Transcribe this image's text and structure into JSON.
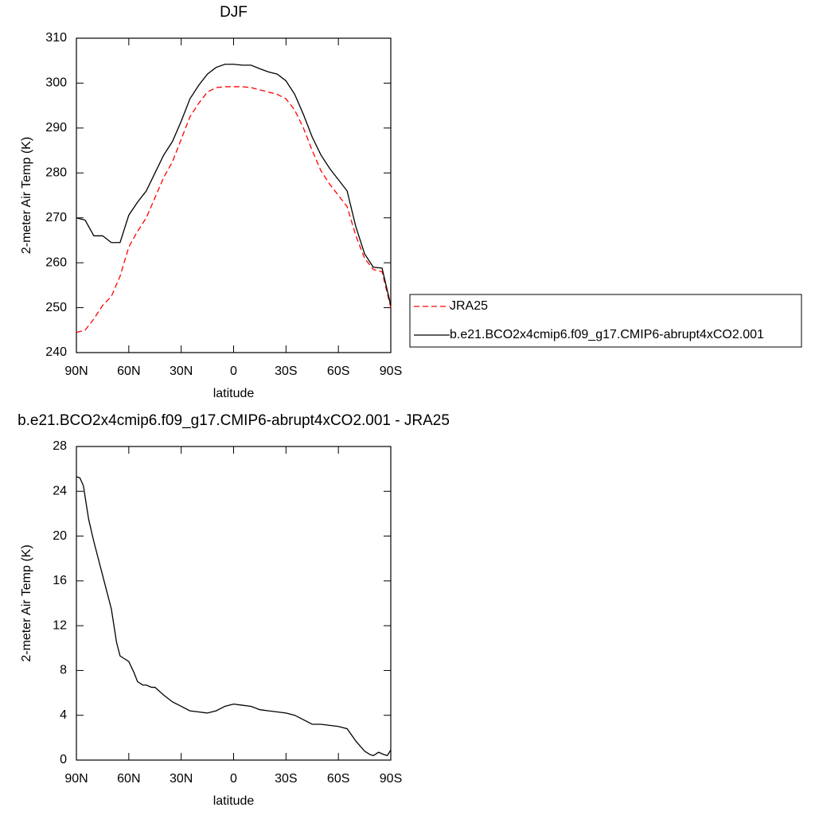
{
  "chart_data": [
    {
      "type": "line",
      "title": "DJF",
      "xlabel": "latitude",
      "ylabel": "2-meter Air Temp (K)",
      "x": [
        90,
        85,
        80,
        75,
        70,
        65,
        60,
        55,
        50,
        45,
        40,
        35,
        30,
        25,
        20,
        15,
        10,
        5,
        0,
        -5,
        -10,
        -15,
        -20,
        -25,
        -30,
        -35,
        -40,
        -45,
        -50,
        -55,
        -60,
        -65,
        -70,
        -75,
        -80,
        -85,
        -90
      ],
      "series": [
        {
          "name": "JRA25",
          "color": "#ff0000",
          "dashed": true,
          "values": [
            244.5,
            245,
            247.5,
            250.5,
            252.5,
            257,
            263.5,
            267,
            270,
            274.5,
            279,
            282.5,
            287.5,
            292.5,
            295.5,
            298,
            299,
            299.2,
            299.2,
            299.2,
            299,
            298.5,
            298,
            297.5,
            296.5,
            294,
            290,
            285,
            280.5,
            277.5,
            275,
            272.5,
            266,
            261,
            258.5,
            258,
            250
          ]
        },
        {
          "name": "b.e21.BCO2x4cmip6.f09_g17.CMIP6-abrupt4xCO2.001",
          "color": "#000000",
          "dashed": false,
          "values": [
            270,
            269.5,
            266,
            266,
            264.5,
            264.5,
            270.6,
            273.5,
            276,
            280,
            284,
            287,
            291.5,
            296.5,
            299.5,
            302,
            303.5,
            304.2,
            304.2,
            304,
            304,
            303.2,
            302.5,
            302,
            300.5,
            297.5,
            293,
            288,
            284,
            281,
            278.5,
            276,
            268,
            262,
            259,
            258.8,
            250.5
          ]
        }
      ],
      "xlim": [
        90,
        -90
      ],
      "xticks": [
        {
          "value": 90,
          "label": "90N"
        },
        {
          "value": 60,
          "label": "60N"
        },
        {
          "value": 30,
          "label": "30N"
        },
        0,
        {
          "value": -30,
          "label": "30S"
        },
        {
          "value": -60,
          "label": "60S"
        },
        {
          "value": -90,
          "label": "90S"
        }
      ],
      "ylim": [
        240,
        310
      ],
      "yticks": [
        240,
        250,
        260,
        270,
        280,
        290,
        300,
        310
      ],
      "legend": "right"
    },
    {
      "type": "line",
      "title": "b.e21.BCO2x4cmip6.f09_g17.CMIP6-abrupt4xCO2.001 - JRA25",
      "xlabel": "latitude",
      "ylabel": "2-meter Air Temp (K)",
      "x": [
        90,
        88,
        86,
        83,
        80,
        75,
        70,
        67,
        65,
        62,
        60,
        57,
        55,
        52,
        50,
        47,
        45,
        40,
        35,
        30,
        25,
        20,
        15,
        10,
        5,
        0,
        -5,
        -10,
        -15,
        -20,
        -25,
        -30,
        -35,
        -40,
        -45,
        -50,
        -55,
        -60,
        -65,
        -70,
        -75,
        -78,
        -80,
        -83,
        -86,
        -88,
        -90
      ],
      "series": [
        {
          "color": "#000000",
          "dashed": false,
          "values": [
            25.3,
            25.2,
            24.5,
            21.5,
            19.5,
            16.5,
            13.5,
            10.5,
            9.3,
            9,
            8.8,
            7.8,
            7,
            6.7,
            6.7,
            6.5,
            6.5,
            5.8,
            5.2,
            4.8,
            4.4,
            4.3,
            4.2,
            4.4,
            4.8,
            5,
            4.9,
            4.8,
            4.5,
            4.4,
            4.3,
            4.2,
            4,
            3.6,
            3.2,
            3.2,
            3.1,
            3.0,
            2.8,
            1.7,
            0.8,
            0.5,
            0.4,
            0.7,
            0.5,
            0.4,
            0.9
          ]
        }
      ],
      "xlim": [
        90,
        -90
      ],
      "xticks": [
        {
          "value": 90,
          "label": "90N"
        },
        {
          "value": 60,
          "label": "60N"
        },
        {
          "value": 30,
          "label": "30N"
        },
        0,
        {
          "value": -30,
          "label": "30S"
        },
        {
          "value": -60,
          "label": "60S"
        },
        {
          "value": -90,
          "label": "90S"
        }
      ],
      "ylim": [
        0,
        28
      ],
      "yticks": [
        0,
        4,
        8,
        12,
        16,
        20,
        24,
        28
      ]
    }
  ]
}
